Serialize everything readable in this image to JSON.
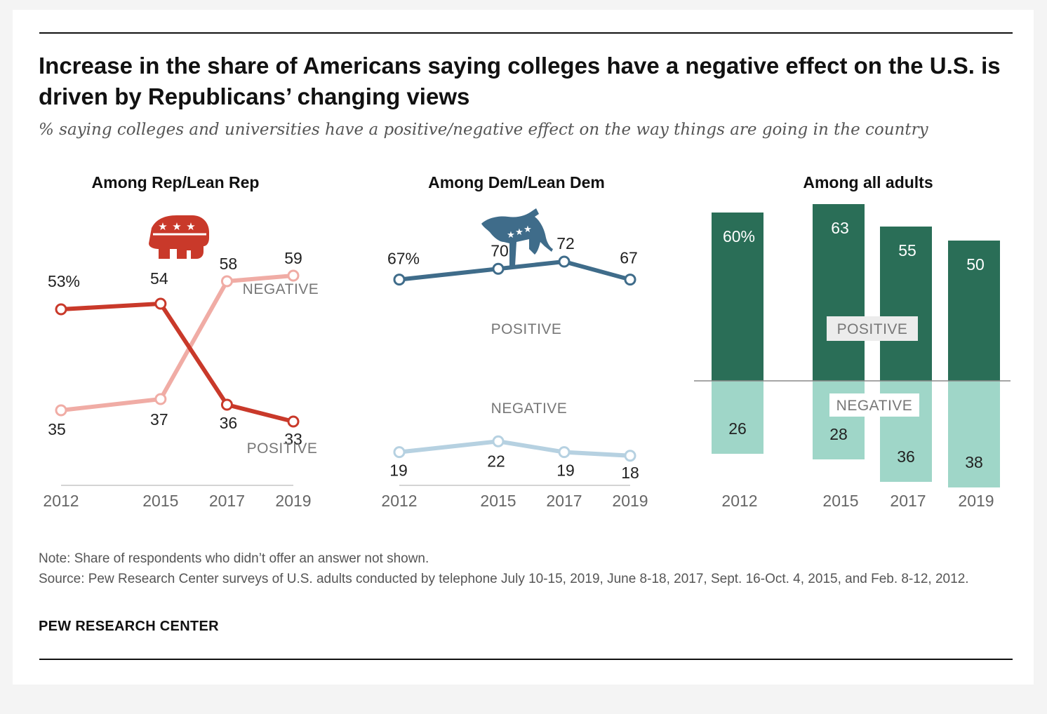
{
  "title": "Increase in the share of Americans saying colleges have a negative effect on the U.S. is driven by Republicans’ changing views",
  "subtitle": "% saying colleges and universities have a positive/negative effect on the way things are going in the country",
  "note": "Note: Share of respondents who didn’t offer an answer not shown.",
  "source": "Source: Pew Research Center surveys of U.S. adults conducted by telephone July 10-15, 2019, June 8-18, 2017, Sept. 16-Oct. 4, 2015, and Feb. 8-12, 2012.",
  "organization": "PEW RESEARCH CENTER",
  "icons": {
    "rep": "republican-elephant-icon",
    "dem": "democratic-donkey-icon"
  },
  "colors": {
    "rep_negative": "#f0aca5",
    "rep_positive": "#c9392a",
    "dem_positive": "#3f6c8a",
    "dem_negative": "#b6d1e1",
    "all_positive": "#2a6e57",
    "all_negative": "#9fd6c8"
  },
  "chart_data": [
    {
      "type": "line",
      "panel": "rep",
      "title": "Among Rep/Lean Rep",
      "x": [
        2012,
        2015,
        2017,
        2019
      ],
      "x_labels": [
        "2012",
        "2015",
        "2017",
        "2019"
      ],
      "ylim": [
        20,
        70
      ],
      "series": [
        {
          "name": "NEGATIVE",
          "values": [
            35,
            37,
            58,
            59
          ],
          "labels": [
            "35",
            "37",
            "58",
            "59"
          ]
        },
        {
          "name": "POSITIVE",
          "values": [
            53,
            54,
            36,
            33
          ],
          "labels": [
            "53%",
            "54",
            "36",
            "33"
          ]
        }
      ]
    },
    {
      "type": "line",
      "panel": "dem",
      "title": "Among Dem/Lean Dem",
      "x": [
        2012,
        2015,
        2017,
        2019
      ],
      "x_labels": [
        "2012",
        "2015",
        "2017",
        "2019"
      ],
      "ylim": [
        0,
        80
      ],
      "series": [
        {
          "name": "POSITIVE",
          "values": [
            67,
            70,
            72,
            67
          ],
          "labels": [
            "67%",
            "70",
            "72",
            "67"
          ]
        },
        {
          "name": "NEGATIVE",
          "values": [
            19,
            22,
            19,
            18
          ],
          "labels": [
            "19",
            "22",
            "19",
            "18"
          ]
        }
      ]
    },
    {
      "type": "bar",
      "panel": "all",
      "title": "Among all adults",
      "categories": [
        "2012",
        "2015",
        "2017",
        "2019"
      ],
      "ylim": [
        -40,
        70
      ],
      "series": [
        {
          "name": "POSITIVE",
          "values": [
            60,
            63,
            55,
            50
          ],
          "labels": [
            "60%",
            "63",
            "55",
            "50"
          ]
        },
        {
          "name": "NEGATIVE",
          "values": [
            26,
            28,
            36,
            38
          ],
          "labels": [
            "26",
            "28",
            "36",
            "38"
          ]
        }
      ]
    }
  ]
}
